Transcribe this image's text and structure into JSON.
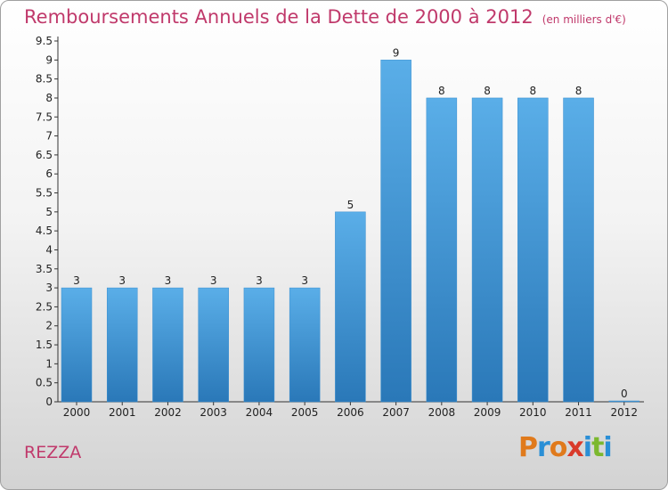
{
  "header": {
    "title": "Remboursements Annuels de la Dette de 2000 à 2012",
    "subtitle": "(en milliers d'€)"
  },
  "footer": {
    "commune": "REZZA",
    "logo_letters": [
      "P",
      "r",
      "o",
      "x",
      "i",
      "t",
      "i"
    ],
    "logo_colors": [
      "#e07a1c",
      "#2a8fd6",
      "#e07a1c",
      "#d93a2b",
      "#2a8fd6",
      "#7cb82f",
      "#2a8fd6"
    ]
  },
  "chart_data": {
    "type": "bar",
    "title": "Remboursements Annuels de la Dette de 2000 à 2012",
    "subtitle": "(en milliers d'€)",
    "categories": [
      "2000",
      "2001",
      "2002",
      "2003",
      "2004",
      "2005",
      "2006",
      "2007",
      "2008",
      "2009",
      "2010",
      "2011",
      "2012"
    ],
    "values": [
      3,
      3,
      3,
      3,
      3,
      3,
      5,
      9,
      8,
      8,
      8,
      8,
      0
    ],
    "data_labels": [
      "3",
      "3",
      "3",
      "3",
      "3",
      "3",
      "5",
      "9",
      "8",
      "8",
      "8",
      "8",
      "0"
    ],
    "y_ticks": [
      0,
      0.5,
      1,
      1.5,
      2,
      2.5,
      3,
      3.5,
      4,
      4.5,
      5,
      5.5,
      6,
      6.5,
      7,
      7.5,
      8,
      8.5,
      9,
      9.5
    ],
    "y_tick_labels": [
      "0",
      "0.5",
      "1",
      "1.5",
      "2",
      "2.5",
      "3",
      "3.5",
      "4",
      "4.5",
      "5",
      "5.5",
      "6",
      "6.5",
      "7",
      "7.5",
      "8",
      "8.5",
      "9",
      "9.5"
    ],
    "ylim": [
      0,
      9.5
    ],
    "xlabel": "",
    "ylabel": "",
    "grid": false,
    "bar_color_top": "#5aaee8",
    "bar_color_bottom": "#2a78b8"
  }
}
